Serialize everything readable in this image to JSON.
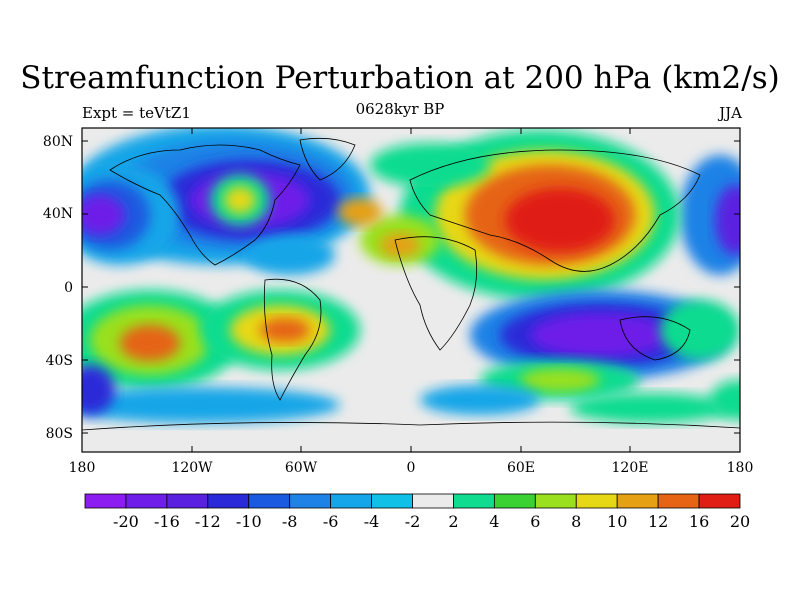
{
  "title": "Streamfunction Perturbation at 200 hPa (km2/s)",
  "left_label": "Expt = teVtZ1",
  "center_label": "0628kyr BP",
  "right_label": "JJA",
  "lat_labels": [
    "80N",
    "40N",
    "0",
    "40S",
    "80S"
  ],
  "lon_labels": [
    "180",
    "120W",
    "60W",
    "0",
    "60E",
    "120E",
    "180"
  ],
  "colorbar": {
    "labels": [
      "-20",
      "-16",
      "-12",
      "-10",
      "-8",
      "-6",
      "-4",
      "-2",
      "2",
      "4",
      "6",
      "8",
      "10",
      "12",
      "16",
      "20"
    ],
    "colors": [
      "#8c1cf0",
      "#6e1ee8",
      "#5a22e0",
      "#2a2ad8",
      "#1a5ae0",
      "#1e82e6",
      "#14a6e8",
      "#10c0e6",
      "#ebebeb",
      "#10dc90",
      "#3ad232",
      "#9ae01e",
      "#e6d814",
      "#e6a014",
      "#e66414",
      "#e01e14"
    ]
  },
  "map": {
    "land_color": "#ebebeb",
    "coastline_color": "#000000"
  }
}
